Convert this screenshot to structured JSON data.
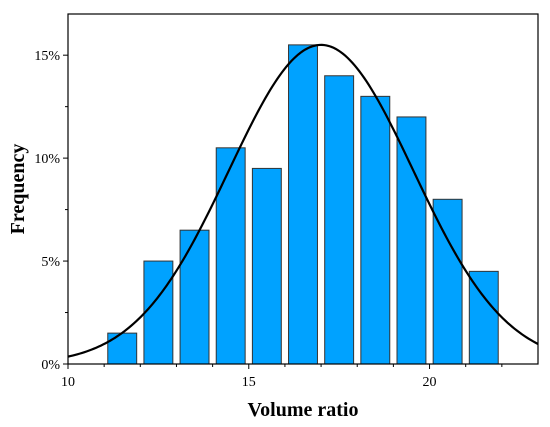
{
  "chart_data": {
    "type": "bar",
    "xlabel": "Volume ratio",
    "ylabel": "Frequency",
    "xlim": [
      10,
      23
    ],
    "ylim": [
      0,
      0.17
    ],
    "x_ticks": [
      10,
      15,
      20
    ],
    "x_tick_labels": [
      "10",
      "15",
      "20"
    ],
    "y_ticks": [
      0,
      0.05,
      0.1,
      0.15
    ],
    "y_tick_labels": [
      "0%",
      "5%",
      "10%",
      "15%"
    ],
    "bar_width": 0.8,
    "bars": [
      {
        "x": 11.5,
        "value": 0.015
      },
      {
        "x": 12.5,
        "value": 0.05
      },
      {
        "x": 13.5,
        "value": 0.065
      },
      {
        "x": 14.5,
        "value": 0.105
      },
      {
        "x": 15.5,
        "value": 0.095
      },
      {
        "x": 16.5,
        "value": 0.155
      },
      {
        "x": 17.5,
        "value": 0.14
      },
      {
        "x": 18.5,
        "value": 0.13
      },
      {
        "x": 19.5,
        "value": 0.12
      },
      {
        "x": 20.5,
        "value": 0.08
      },
      {
        "x": 21.5,
        "value": 0.045
      }
    ],
    "fit_curve": {
      "type": "normal",
      "mean": 17.0,
      "sd": 2.55,
      "peak": 0.155
    },
    "grid": false,
    "legend": "none",
    "bar_color": "#00a2ff",
    "bar_edge_color": "#333333",
    "curve_color": "#000000"
  }
}
